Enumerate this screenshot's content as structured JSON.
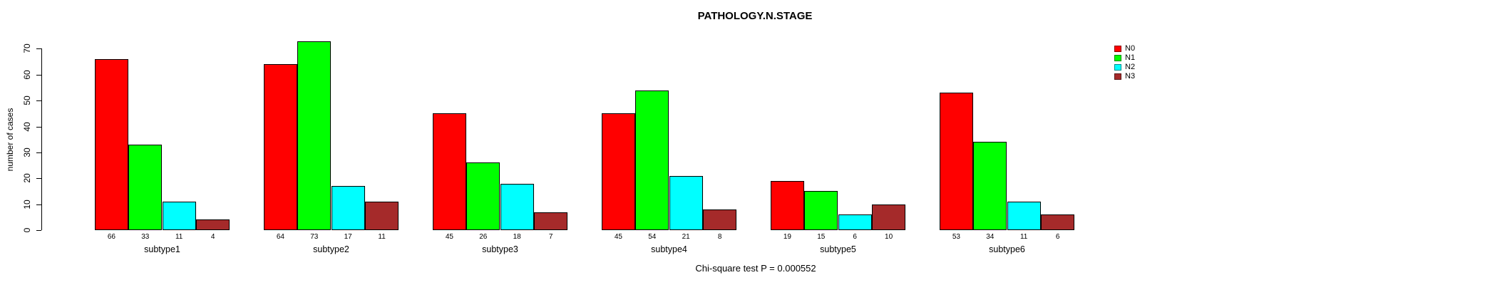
{
  "chart_data": {
    "type": "bar",
    "title": "PATHOLOGY.N.STAGE",
    "xlabel": "",
    "ylabel": "number of cases",
    "ylim": [
      0,
      70
    ],
    "yticks": [
      0,
      10,
      20,
      30,
      40,
      50,
      60,
      70
    ],
    "grid": false,
    "legend_position": "top-right",
    "bar_value_labels_shown": true,
    "annotation": "Chi-square test P = 0.000552",
    "categories": [
      "subtype1",
      "subtype2",
      "subtype3",
      "subtype4",
      "subtype5",
      "subtype6"
    ],
    "series": [
      {
        "name": "N0",
        "color": "#FF0000",
        "values": [
          66,
          64,
          45,
          45,
          19,
          53
        ]
      },
      {
        "name": "N1",
        "color": "#00FF00",
        "values": [
          33,
          73,
          26,
          54,
          15,
          34
        ]
      },
      {
        "name": "N2",
        "color": "#00FFFF",
        "values": [
          11,
          17,
          18,
          21,
          6,
          11
        ]
      },
      {
        "name": "N3",
        "color": "#A52A2A",
        "values": [
          4,
          11,
          7,
          8,
          10,
          6
        ]
      }
    ]
  }
}
